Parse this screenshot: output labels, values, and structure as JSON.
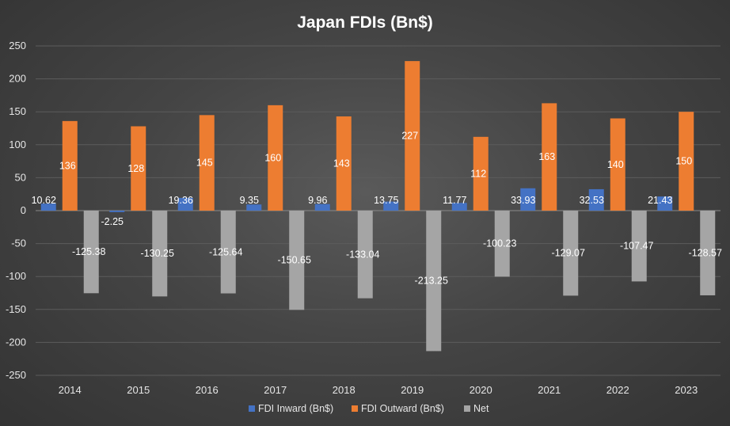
{
  "chart_data": {
    "type": "bar",
    "title": "Japan FDIs (Bn$)",
    "categories": [
      "2014",
      "2015",
      "2016",
      "2017",
      "2018",
      "2019",
      "2020",
      "2021",
      "2022",
      "2023"
    ],
    "series": [
      {
        "name": "FDI Inward (Bn$)",
        "color": "#4472c4",
        "values": [
          10.62,
          -2.25,
          19.36,
          9.35,
          9.96,
          13.75,
          11.77,
          33.93,
          32.53,
          21.43
        ]
      },
      {
        "name": "FDI Outward (Bn$)",
        "color": "#ed7d31",
        "values": [
          136,
          128,
          145,
          160,
          143,
          227,
          112,
          163,
          140,
          150
        ]
      },
      {
        "name": "Net",
        "color": "#a5a5a5",
        "values": [
          -125.38,
          -130.25,
          -125.64,
          -150.65,
          -133.04,
          -213.25,
          -100.23,
          -129.07,
          -107.47,
          -128.57
        ]
      }
    ],
    "ylim": [
      -250,
      250
    ],
    "yticks": [
      250,
      200,
      150,
      100,
      50,
      0,
      -50,
      -100,
      -150,
      -200,
      -250
    ],
    "grid": true,
    "legend": "bottom",
    "xlabel": "",
    "ylabel": ""
  }
}
